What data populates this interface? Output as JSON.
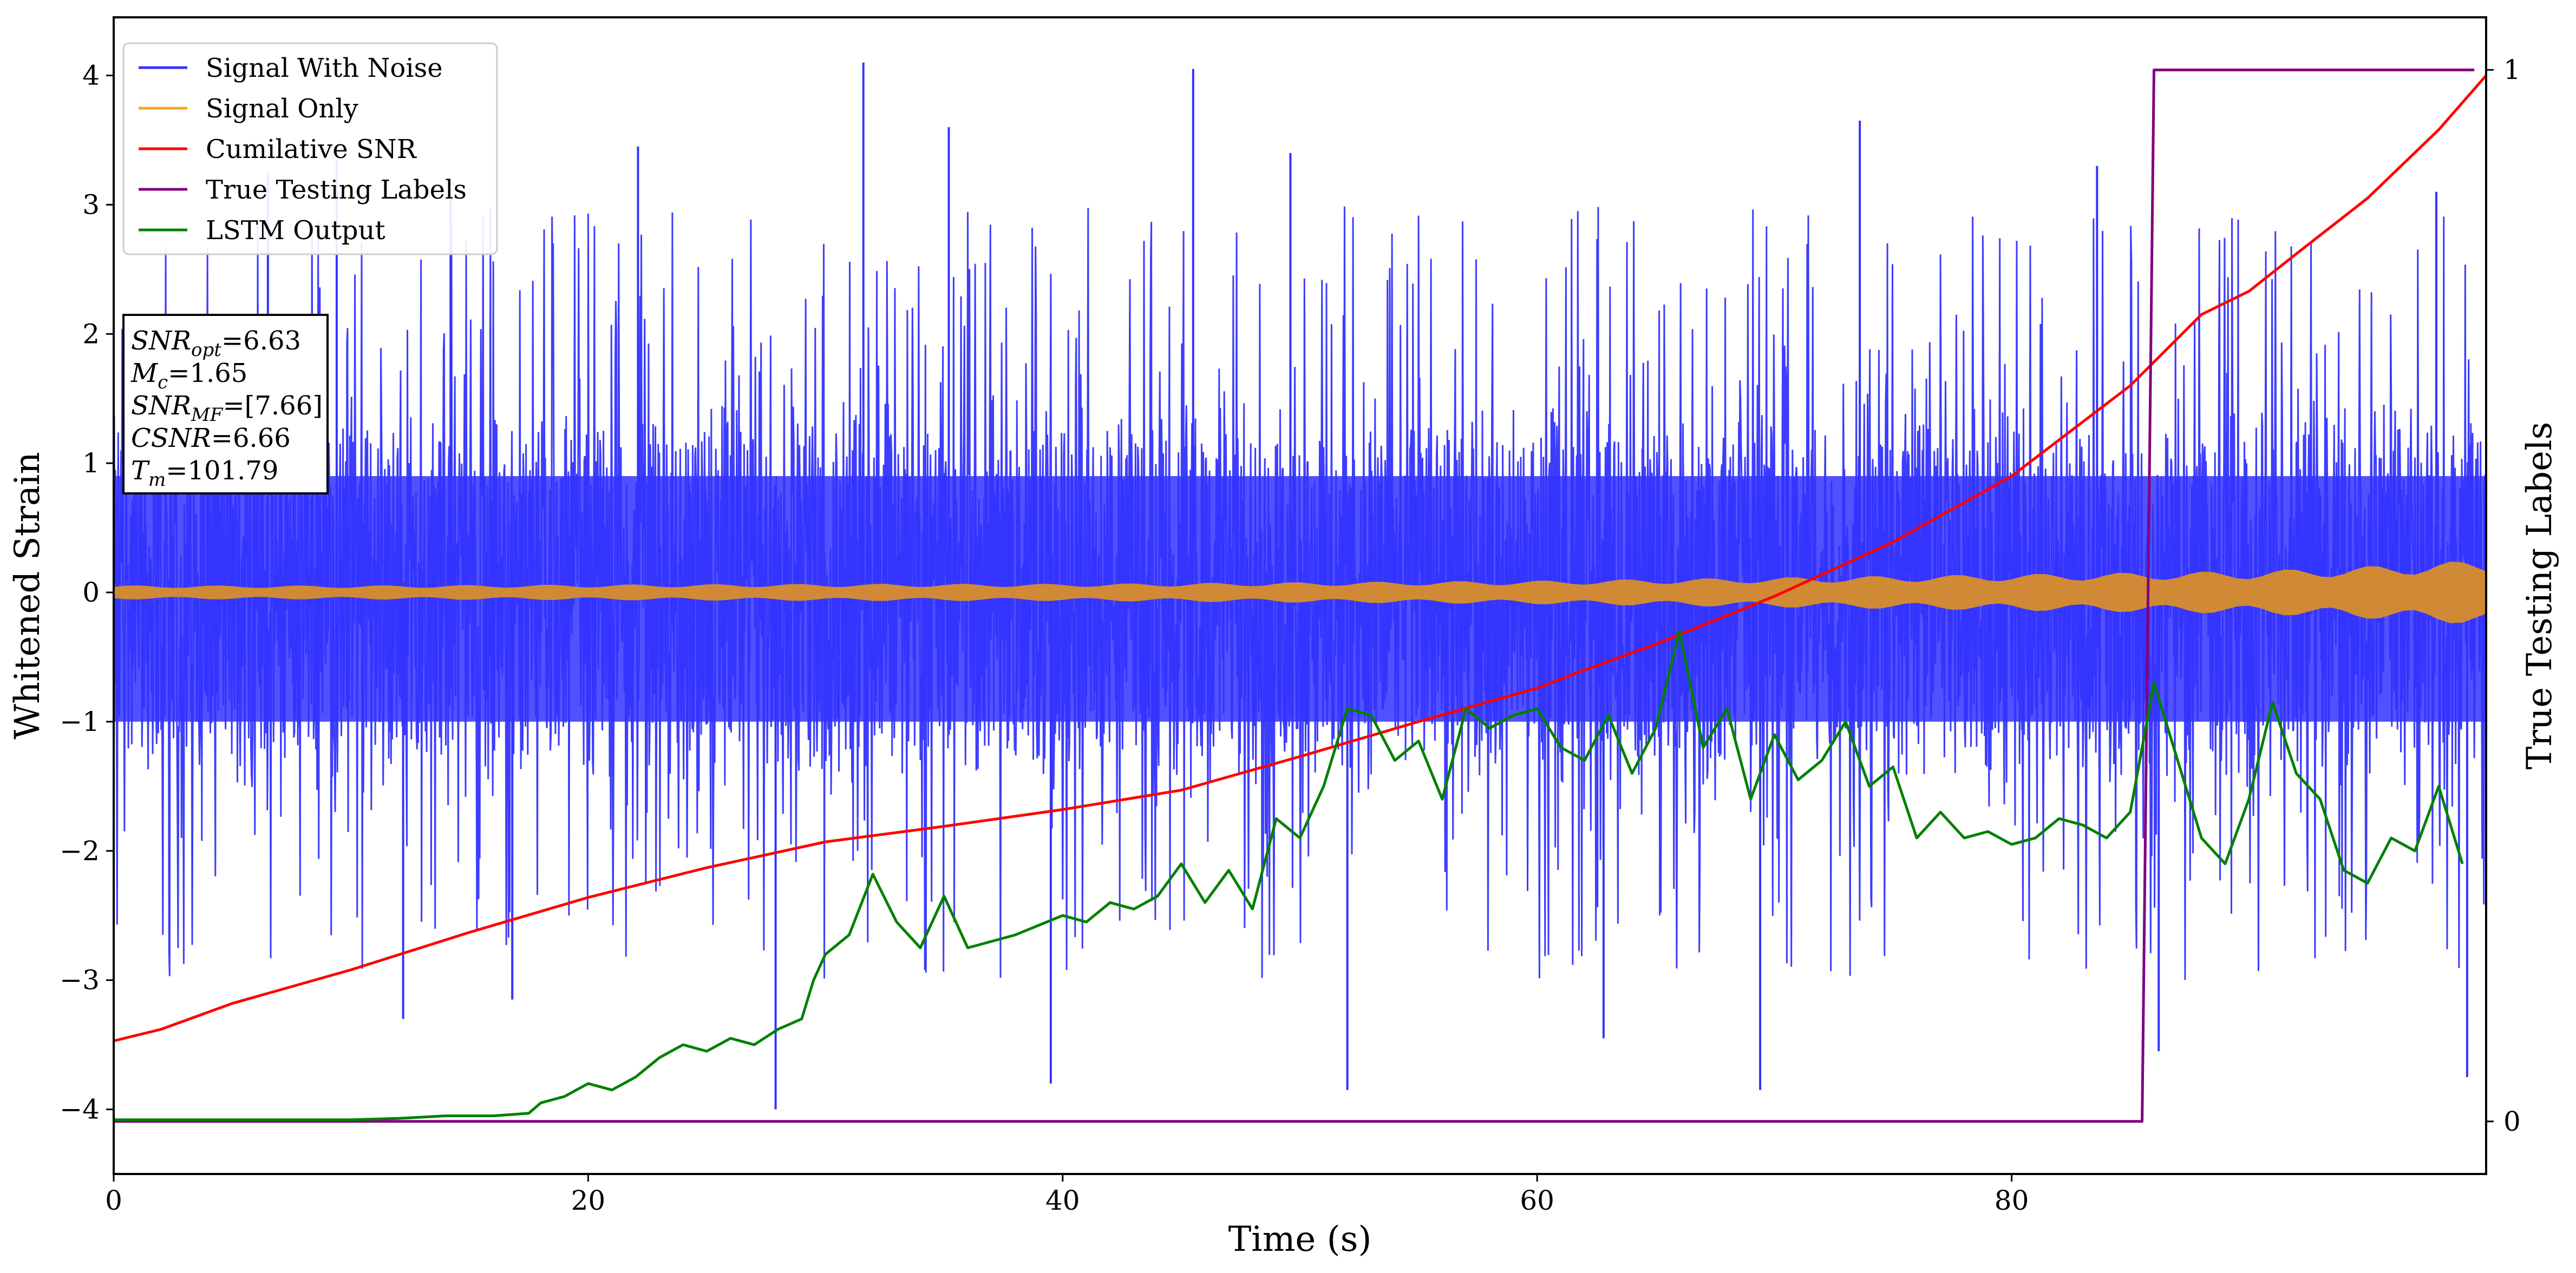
{
  "chart_data": {
    "type": "line",
    "xlabel": "Time (s)",
    "ylabel": "Whitened Strain",
    "y2label": "True Testing Labels",
    "xlim": [
      0,
      100
    ],
    "ylim": [
      -4.5,
      4.45
    ],
    "y2lim": [
      -0.05,
      1.05
    ],
    "x_ticks": [
      0,
      20,
      40,
      60,
      80
    ],
    "x_tick_labels": [
      "0",
      "20",
      "40",
      "60",
      "80"
    ],
    "y_ticks": [
      -4,
      -3,
      -2,
      -1,
      0,
      1,
      2,
      3,
      4
    ],
    "y_tick_labels": [
      "−4",
      "−3",
      "−2",
      "−1",
      "0",
      "1",
      "2",
      "3",
      "4"
    ],
    "y2_ticks": [
      0,
      1
    ],
    "y2_tick_labels": [
      "0",
      "1"
    ],
    "grid": false,
    "legend_position": "top-left",
    "annotation": {
      "lines": [
        {
          "main": "SNR",
          "sub": "opt",
          "rest": "=6.63"
        },
        {
          "main": "M",
          "sub": "c",
          "rest": "=1.65"
        },
        {
          "main": "SNR",
          "sub": "MF",
          "rest": "=[7.66]"
        },
        {
          "main": "CSNR",
          "sub": "",
          "rest": "=6.66"
        },
        {
          "main": "T",
          "sub": "m",
          "rest": "=101.79"
        }
      ]
    },
    "series": [
      {
        "name": "Signal With Noise",
        "color": "#3333ff",
        "axis": "left",
        "kind": "noise",
        "x_range": [
          0,
          100
        ],
        "center": 0.0,
        "envelope": 1.3,
        "peaks": [
          {
            "x": 6.5,
            "y": 3.25
          },
          {
            "x": 9.4,
            "y": 3.35
          },
          {
            "x": 14.2,
            "y": 3.2
          },
          {
            "x": 22.1,
            "y": 3.45
          },
          {
            "x": 31.6,
            "y": 4.1
          },
          {
            "x": 35.2,
            "y": 3.6
          },
          {
            "x": 45.5,
            "y": 4.05
          },
          {
            "x": 49.6,
            "y": 3.4
          },
          {
            "x": 73.6,
            "y": 3.65
          },
          {
            "x": 83.6,
            "y": 3.3
          },
          {
            "x": 97.9,
            "y": 3.1
          },
          {
            "x": 12.2,
            "y": -3.3
          },
          {
            "x": 16.8,
            "y": -3.15
          },
          {
            "x": 27.9,
            "y": -4.0
          },
          {
            "x": 39.5,
            "y": -3.8
          },
          {
            "x": 52.0,
            "y": -3.85
          },
          {
            "x": 62.8,
            "y": -3.45
          },
          {
            "x": 69.4,
            "y": -3.85
          },
          {
            "x": 86.2,
            "y": -3.55
          },
          {
            "x": 99.2,
            "y": -3.75
          }
        ]
      },
      {
        "name": "Signal Only",
        "color": "#f5a623",
        "fill_color": "#d08a35",
        "axis": "left",
        "kind": "band",
        "x": [
          0,
          10,
          20,
          30,
          40,
          50,
          60,
          70,
          80,
          85,
          90,
          95,
          100
        ],
        "amplitude": [
          0.04,
          0.04,
          0.045,
          0.05,
          0.05,
          0.06,
          0.07,
          0.09,
          0.11,
          0.12,
          0.13,
          0.16,
          0.2
        ]
      },
      {
        "name": "Cumilative SNR",
        "color": "#ff0000",
        "axis": "left",
        "x": [
          0,
          2,
          5,
          10,
          15,
          20,
          25,
          30,
          35,
          40,
          45,
          50,
          55,
          60,
          62,
          65,
          70,
          75,
          80,
          85,
          88,
          90,
          92,
          95,
          98,
          100
        ],
        "y": [
          -3.47,
          -3.38,
          -3.18,
          -2.92,
          -2.63,
          -2.36,
          -2.13,
          -1.93,
          -1.81,
          -1.68,
          -1.53,
          -1.27,
          -1.0,
          -0.74,
          -0.6,
          -0.4,
          -0.03,
          0.39,
          0.9,
          1.6,
          2.15,
          2.33,
          2.62,
          3.05,
          3.58,
          4.0
        ]
      },
      {
        "name": "True Testing Labels",
        "color": "#800080",
        "axis": "right",
        "x": [
          0,
          85.5,
          86.0,
          99.5
        ],
        "y": [
          0,
          0,
          1,
          1
        ]
      },
      {
        "name": "LSTM Output",
        "color": "#008000",
        "axis": "left",
        "x": [
          0,
          10,
          12,
          14,
          16,
          17.5,
          18,
          19,
          20,
          21,
          22,
          23,
          24,
          25,
          26,
          27,
          28,
          29,
          29.5,
          30,
          31,
          32,
          33,
          34,
          35,
          36,
          38,
          40,
          41,
          42,
          43,
          44,
          45,
          46,
          47,
          48,
          49,
          50,
          51,
          52,
          53,
          54,
          55,
          56,
          57,
          58,
          59,
          60,
          61,
          62,
          63,
          64,
          65,
          66,
          67,
          68,
          69,
          70,
          71,
          72,
          73,
          74,
          75,
          76,
          77,
          78,
          79,
          80,
          81,
          82,
          83,
          84,
          85,
          86,
          87,
          88,
          89,
          90,
          91,
          92,
          93,
          94,
          95,
          96,
          97,
          98,
          99
        ],
        "y": [
          -4.08,
          -4.08,
          -4.07,
          -4.05,
          -4.05,
          -4.03,
          -3.95,
          -3.9,
          -3.8,
          -3.85,
          -3.75,
          -3.6,
          -3.5,
          -3.55,
          -3.45,
          -3.5,
          -3.38,
          -3.3,
          -3.0,
          -2.8,
          -2.65,
          -2.18,
          -2.55,
          -2.75,
          -2.35,
          -2.75,
          -2.65,
          -2.5,
          -2.55,
          -2.4,
          -2.45,
          -2.35,
          -2.1,
          -2.4,
          -2.15,
          -2.45,
          -1.75,
          -1.9,
          -1.5,
          -0.9,
          -0.95,
          -1.3,
          -1.15,
          -1.6,
          -0.9,
          -1.05,
          -0.95,
          -0.9,
          -1.2,
          -1.3,
          -0.95,
          -1.4,
          -1.05,
          -0.3,
          -1.2,
          -0.9,
          -1.6,
          -1.1,
          -1.45,
          -1.3,
          -1.0,
          -1.5,
          -1.35,
          -1.9,
          -1.7,
          -1.9,
          -1.85,
          -1.95,
          -1.9,
          -1.75,
          -1.8,
          -1.9,
          -1.7,
          -0.7,
          -1.3,
          -1.9,
          -2.1,
          -1.6,
          -0.85,
          -1.4,
          -1.6,
          -2.15,
          -2.25,
          -1.9,
          -2.0,
          -1.5,
          -2.1
        ]
      }
    ]
  }
}
